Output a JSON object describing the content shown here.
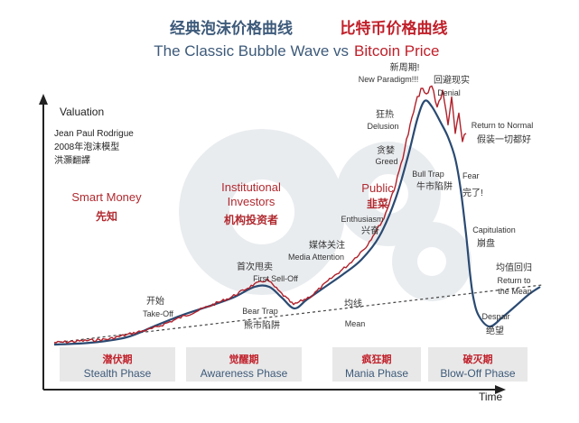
{
  "colors": {
    "blue_text": "#3d5a7a",
    "red_text": "#c0202a",
    "bitcoin_line": "#b0202a",
    "bubble_line": "#2a4a72",
    "phase_band": "#e8e8e8",
    "gear": "#e9ecef",
    "axis": "#222222",
    "mean_line": "#444444",
    "body_text": "#333333"
  },
  "titles": {
    "cn_blue": "经典泡沫价格曲线",
    "cn_red": "比特币价格曲线",
    "en_blue": "The Classic Bubble Wave vs",
    "en_red": "Bitcoin Price"
  },
  "credit": {
    "valuation": "Valuation",
    "author": "Jean Paul Rodrigue",
    "model": "2008年泡沫模型",
    "translator": "洪灝翻譯"
  },
  "axis": {
    "time": "Time"
  },
  "groups": {
    "smart_money_en": "Smart Money",
    "smart_money_cn": "先知",
    "institutional_en1": "Institutional",
    "institutional_en2": "Investors",
    "institutional_cn": "机构投资者",
    "public_en": "Public",
    "public_cn": "韭菜"
  },
  "phases": [
    {
      "cn": "潜伏期",
      "en": "Stealth Phase"
    },
    {
      "cn": "觉醒期",
      "en": "Awareness Phase"
    },
    {
      "cn": "疯狂期",
      "en": "Mania Phase"
    },
    {
      "cn": "破灭期",
      "en": "Blow-Off Phase"
    }
  ],
  "annotations": {
    "new_paradigm_cn": "新周期!",
    "new_paradigm_en": "New Paradigm!!!",
    "denial_cn": "回避现实",
    "denial_en": "Denial",
    "delusion_cn": "狂热",
    "delusion_en": "Delusion",
    "return_normal_en": "Return to Normal",
    "return_normal_cn": "假装一切都好",
    "greed_cn": "贪婪",
    "greed_en": "Greed",
    "bull_trap_en": "Bull Trap",
    "bull_trap_cn": "牛市陷阱",
    "fear_en": "Fear",
    "fear_cn": "完了!",
    "enthusiasm_en": "Enthusiasm",
    "enthusiasm_cn": "兴奋",
    "media_cn": "媒体关注",
    "media_en": "Media Attention",
    "capitulation_en": "Capitulation",
    "capitulation_cn": "崩盘",
    "first_selloff_cn": "首次甩卖",
    "first_selloff_en": "First Sell-Off",
    "return_mean_cn": "均值回归",
    "return_mean_en1": "Return to",
    "return_mean_en2": "the Mean",
    "takeoff_cn": "开始",
    "takeoff_en": "Take-Off",
    "bear_trap_en": "Bear Trap",
    "bear_trap_cn": "熊市陷阱",
    "mean_cn": "均线",
    "mean_en": "Mean",
    "despair_en": "Despair",
    "despair_cn": "绝望"
  },
  "chart_data": {
    "type": "line",
    "ylabel": "Valuation",
    "xlabel": "Time",
    "grid": false,
    "series": [
      {
        "name": "经典泡沫价格曲线",
        "style": "smooth model curve"
      },
      {
        "name": "比特币价格曲线",
        "style": "noisy price line"
      }
    ]
  }
}
